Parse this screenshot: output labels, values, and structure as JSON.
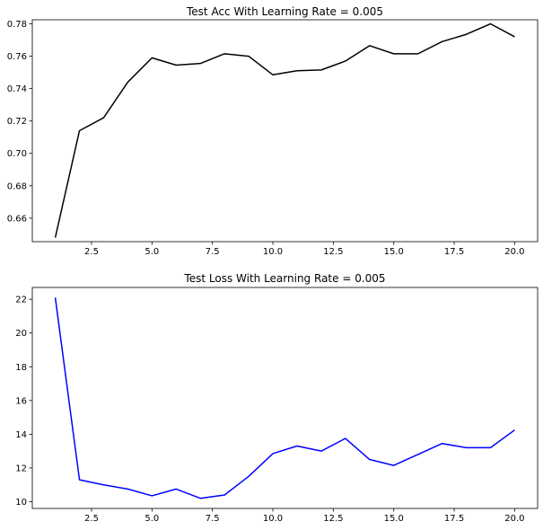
{
  "chart_data": [
    {
      "type": "line",
      "title": "Test Acc With Learning Rate = 0.005",
      "xlabel": "",
      "ylabel": "",
      "xlim": [
        0.05,
        20.95
      ],
      "ylim": [
        0.6455,
        0.7825
      ],
      "x_ticks": [
        2.5,
        5.0,
        7.5,
        10.0,
        12.5,
        15.0,
        17.5,
        20.0
      ],
      "x_tick_labels": [
        "2.5",
        "5.0",
        "7.5",
        "10.0",
        "12.5",
        "15.0",
        "17.5",
        "20.0"
      ],
      "y_ticks": [
        0.66,
        0.68,
        0.7,
        0.72,
        0.74,
        0.76,
        0.78
      ],
      "y_tick_labels": [
        "0.66",
        "0.68",
        "0.70",
        "0.72",
        "0.74",
        "0.76",
        "0.78"
      ],
      "grid": false,
      "color": "#000000",
      "x": [
        1,
        2,
        3,
        4,
        5,
        6,
        7,
        8,
        9,
        10,
        11,
        12,
        13,
        14,
        15,
        16,
        17,
        18,
        19,
        20
      ],
      "values": [
        0.648,
        0.714,
        0.722,
        0.744,
        0.759,
        0.7545,
        0.7555,
        0.7615,
        0.76,
        0.7485,
        0.751,
        0.7515,
        0.757,
        0.7665,
        0.7615,
        0.7615,
        0.769,
        0.7735,
        0.78,
        0.772
      ]
    },
    {
      "type": "line",
      "title": "Test Loss With Learning Rate = 0.005",
      "xlabel": "",
      "ylabel": "",
      "xlim": [
        0.05,
        20.95
      ],
      "ylim": [
        9.6,
        22.7
      ],
      "x_ticks": [
        2.5,
        5.0,
        7.5,
        10.0,
        12.5,
        15.0,
        17.5,
        20.0
      ],
      "x_tick_labels": [
        "2.5",
        "5.0",
        "7.5",
        "10.0",
        "12.5",
        "15.0",
        "17.5",
        "20.0"
      ],
      "y_ticks": [
        10,
        12,
        14,
        16,
        18,
        20,
        22
      ],
      "y_tick_labels": [
        "10",
        "12",
        "14",
        "16",
        "18",
        "20",
        "22"
      ],
      "grid": false,
      "color": "#0000ff",
      "x": [
        1,
        2,
        3,
        4,
        5,
        6,
        7,
        8,
        9,
        10,
        11,
        12,
        13,
        14,
        15,
        16,
        17,
        18,
        19,
        20
      ],
      "values": [
        22.1,
        11.3,
        11.0,
        10.75,
        10.35,
        10.75,
        10.2,
        10.4,
        11.5,
        12.85,
        13.3,
        13.0,
        13.75,
        12.5,
        12.15,
        12.8,
        13.45,
        13.2,
        13.2,
        14.25
      ]
    }
  ]
}
